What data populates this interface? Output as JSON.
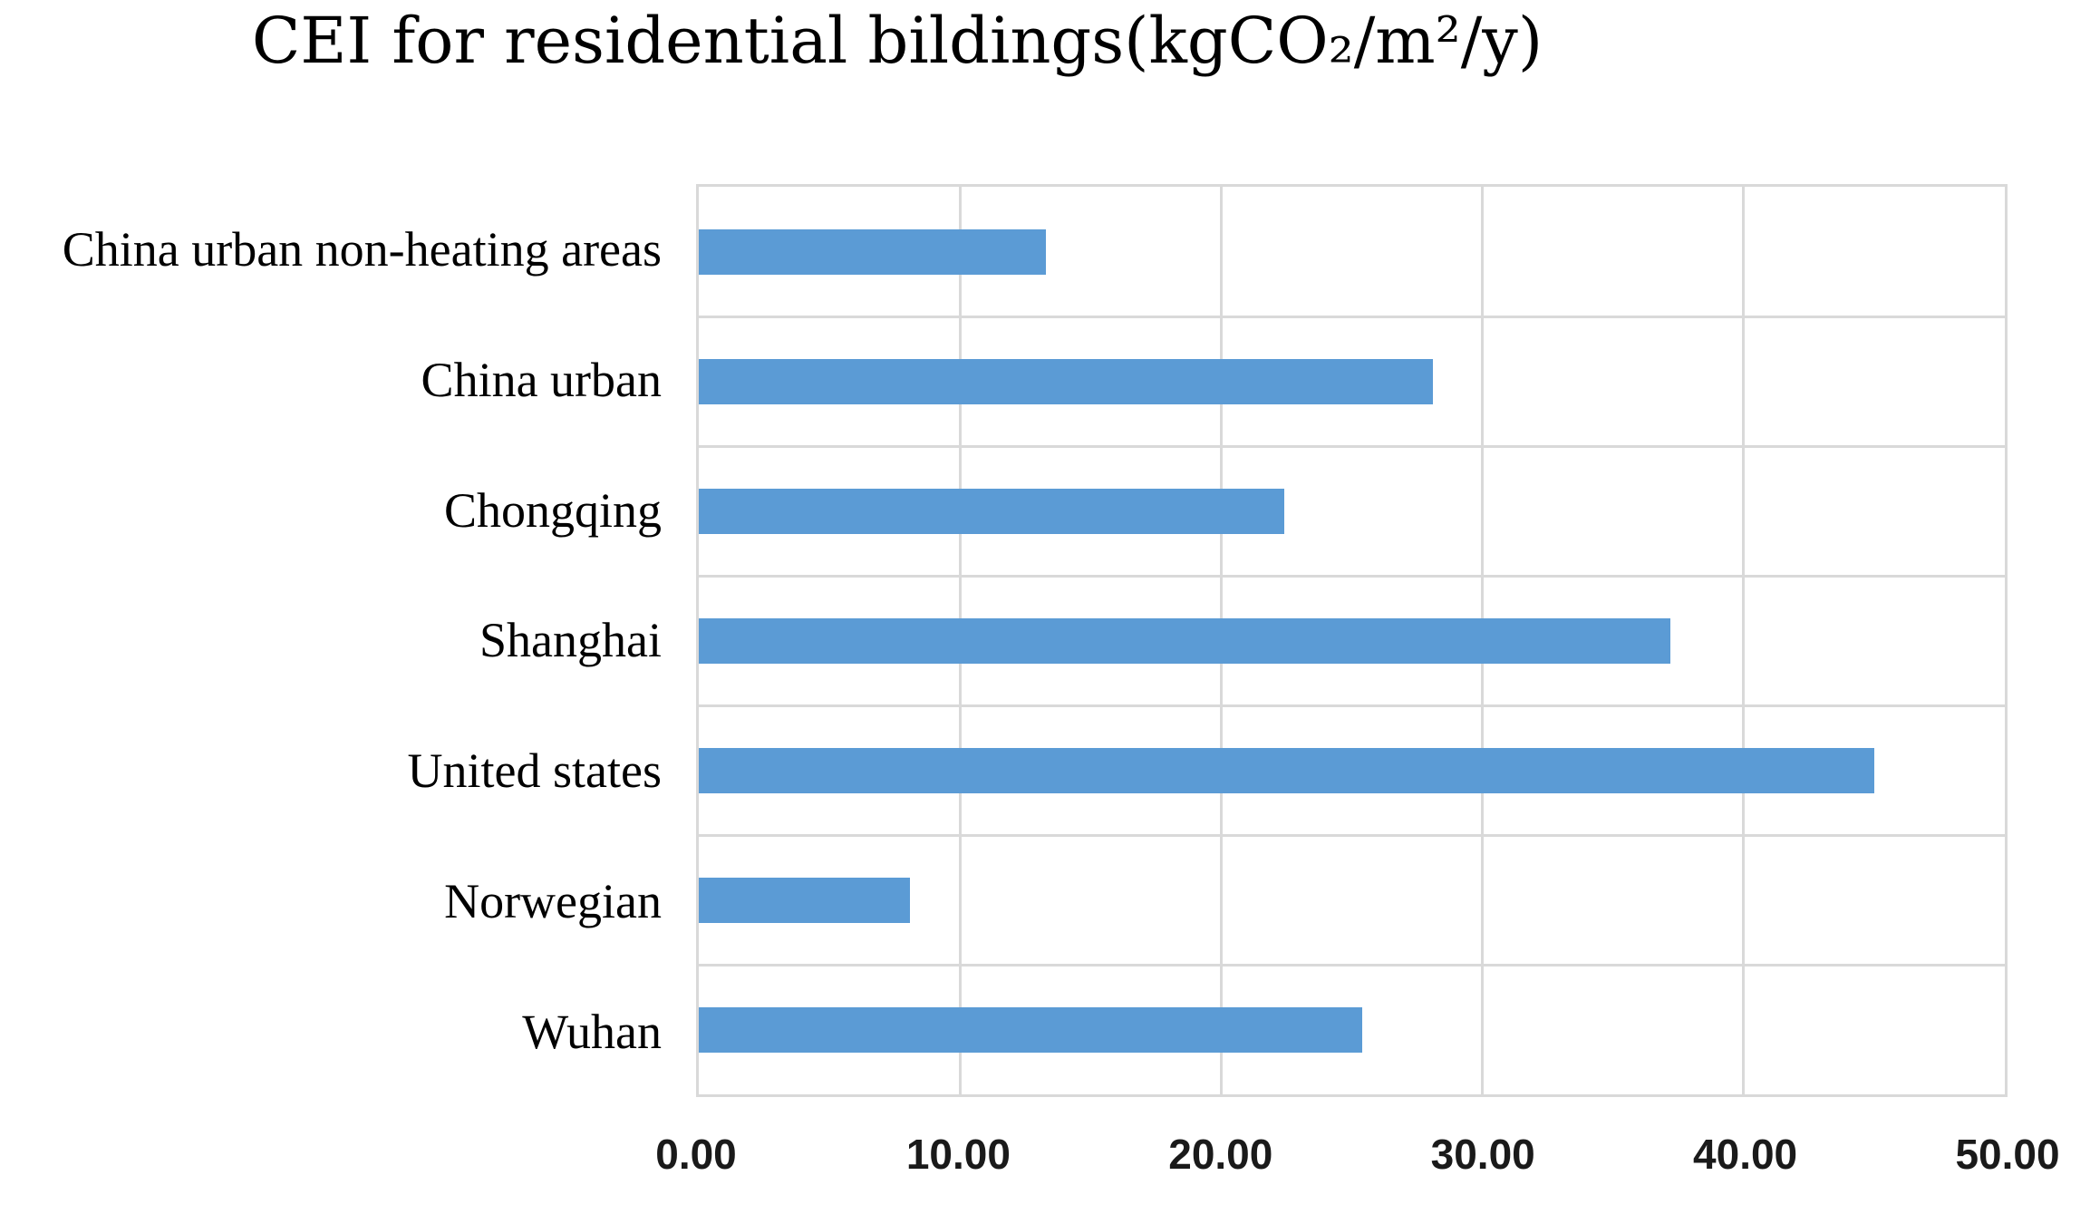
{
  "chart_data": {
    "type": "bar",
    "orientation": "horizontal",
    "title": "CEI for residential bildings(kgCO₂/m²/y)",
    "categories": [
      "China urban non-heating areas",
      "China urban",
      "Chongqing",
      "Shanghai",
      "United states",
      "Norwegian",
      "Wuhan"
    ],
    "values": [
      13.3,
      28.1,
      22.4,
      37.2,
      45.0,
      8.1,
      25.4
    ],
    "xlabel": "",
    "ylabel": "",
    "xlim": [
      0,
      50
    ],
    "x_tick_values": [
      0,
      10,
      20,
      30,
      40,
      50
    ],
    "x_tick_labels": [
      "0.00",
      "10.00",
      "20.00",
      "30.00",
      "40.00",
      "50.00"
    ],
    "grid": true,
    "legend_position": "none",
    "bar_color": "#5B9BD5",
    "grid_color": "#D9D9D9",
    "plot_background": "#FFFFFF",
    "tick_label_color": "#1A1A1A",
    "text_color": "#000000"
  }
}
